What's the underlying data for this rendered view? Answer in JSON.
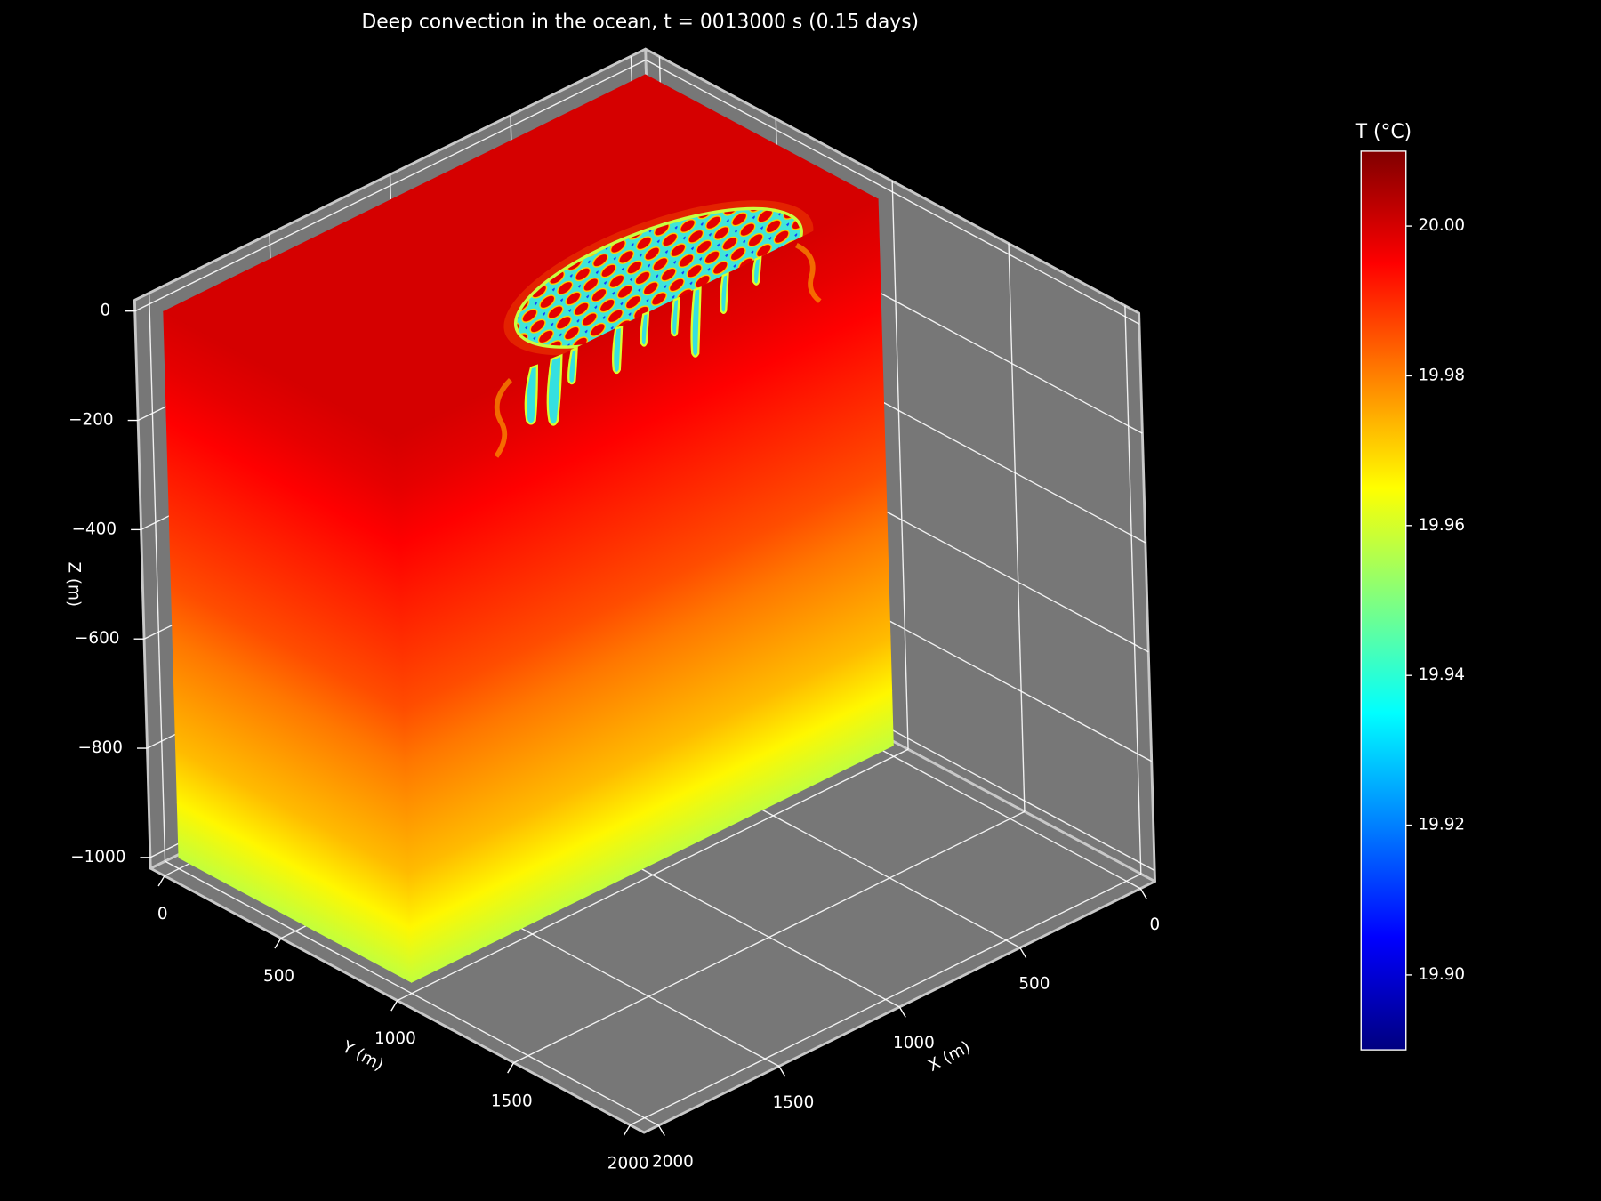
{
  "chart_data": {
    "type": "volume3d",
    "title": "Deep convection in the ocean, t = 0013000 s (0.15 days)",
    "xlabel": "X (m)",
    "ylabel": "Y (m)",
    "zlabel": "Z (m)",
    "xlim": [
      0,
      2000
    ],
    "ylim": [
      0,
      2000
    ],
    "zlim": [
      -1000,
      0
    ],
    "xticks": [
      0,
      500,
      1000,
      1500,
      2000
    ],
    "yticks": [
      0,
      500,
      1000,
      1500,
      2000
    ],
    "zticks": [
      {
        "value": -1000,
        "label": "−1000"
      },
      {
        "value": -800,
        "label": "−800"
      },
      {
        "value": -600,
        "label": "−600"
      },
      {
        "value": -400,
        "label": "−400"
      },
      {
        "value": -200,
        "label": "−200"
      },
      0
    ],
    "volume": {
      "x": [
        0,
        2000
      ],
      "y": [
        0,
        1000
      ],
      "z": [
        0,
        -100,
        -200,
        -300,
        -400,
        -500,
        -600,
        -700,
        -800,
        -900,
        -1000
      ],
      "T": [
        20.0,
        19.998,
        19.995,
        19.992,
        19.989,
        19.986,
        19.981,
        19.977,
        19.973,
        19.966,
        19.958
      ]
    },
    "colorbar": {
      "label": "T (°C)",
      "colormap": "jet",
      "clim": [
        19.89,
        20.01
      ],
      "ticks": [
        {
          "value": 19.9,
          "label": "19.90"
        },
        {
          "value": 19.92,
          "label": "19.92"
        },
        {
          "value": 19.94,
          "label": "19.94"
        },
        {
          "value": 19.96,
          "label": "19.96"
        },
        {
          "value": 19.98,
          "label": "19.98"
        },
        {
          "value": 20.0,
          "label": "20.00"
        }
      ]
    },
    "background": "#000000",
    "pane_color": "#777777",
    "grid": true
  }
}
